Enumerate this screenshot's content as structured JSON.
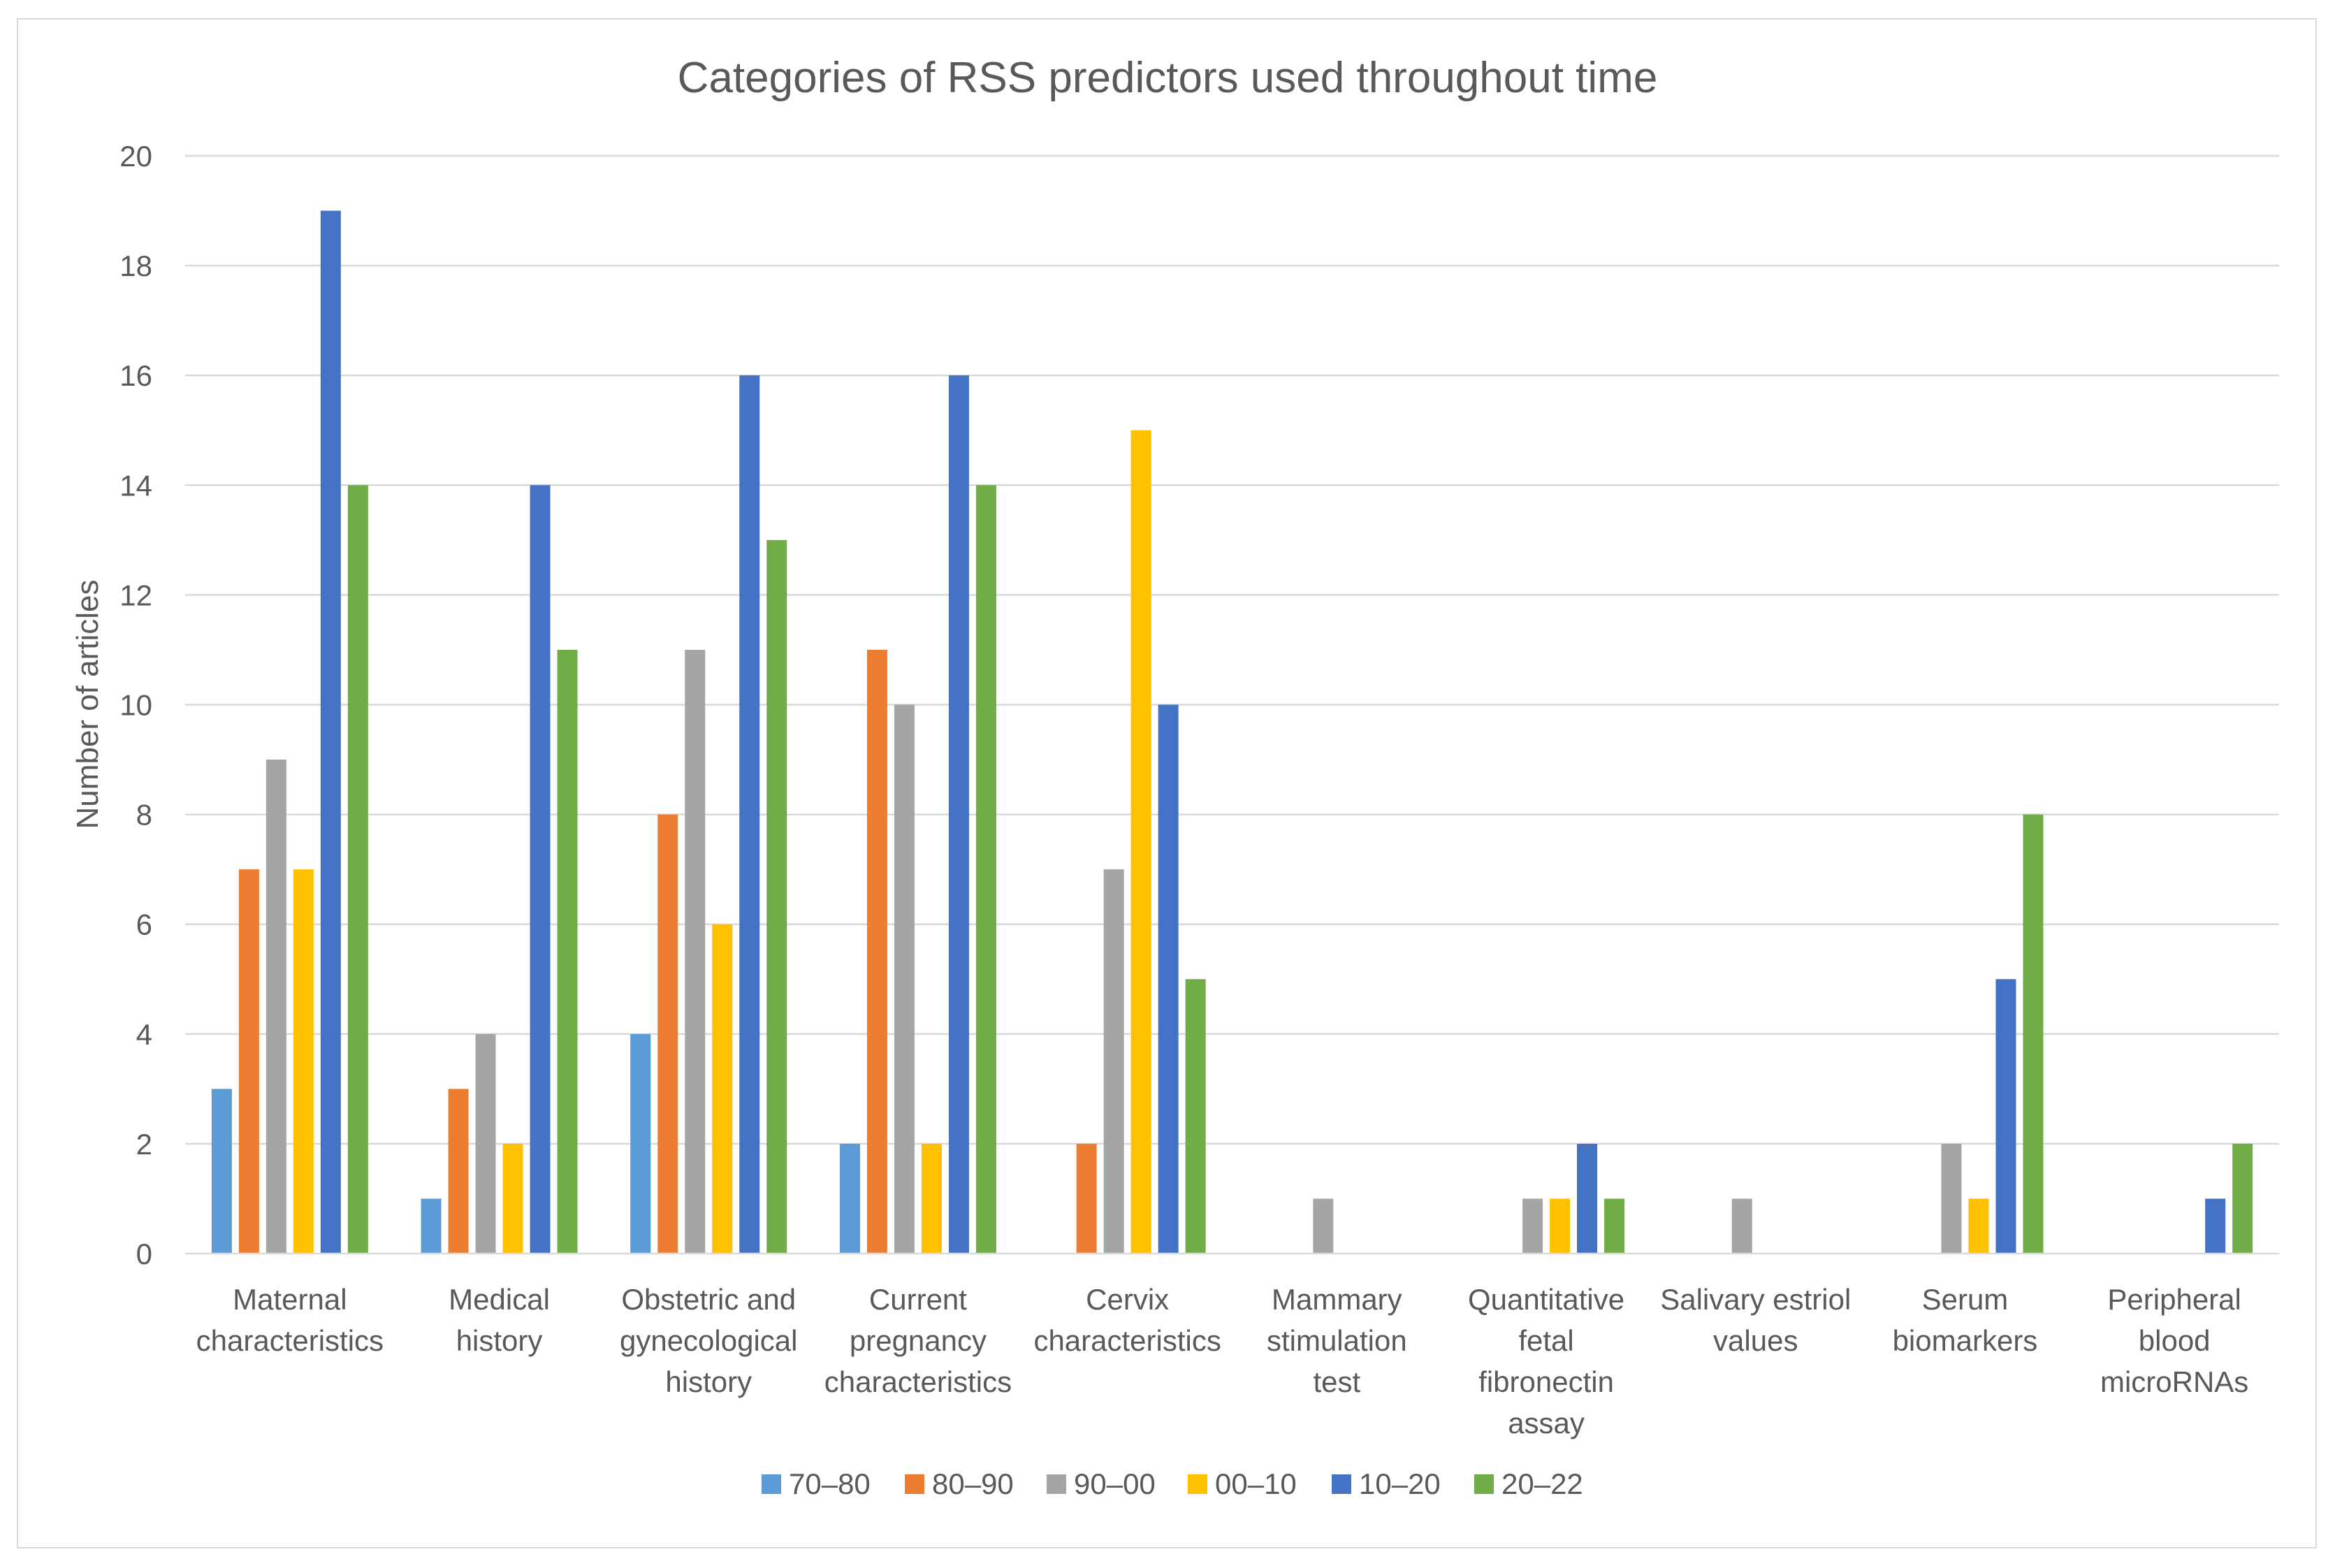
{
  "chart_data": {
    "type": "bar",
    "title": "Categories of RSS predictors used throughout time",
    "xlabel": "",
    "ylabel": "Number of articles",
    "ylim": [
      0,
      20
    ],
    "yticks": [
      0,
      2,
      4,
      6,
      8,
      10,
      12,
      14,
      16,
      18,
      20
    ],
    "grid": true,
    "legend_position": "bottom",
    "categories": [
      [
        "Maternal",
        "characteristics"
      ],
      [
        "Medical",
        "history"
      ],
      [
        "Obstetric and",
        "gynecological",
        "history"
      ],
      [
        "Current",
        "pregnancy",
        "characteristics"
      ],
      [
        "Cervix",
        "characteristics"
      ],
      [
        "Mammary",
        "stimulation",
        "test"
      ],
      [
        "Quantitative",
        "fetal",
        "fibronectin",
        "assay"
      ],
      [
        "Salivary estriol",
        "values"
      ],
      [
        "Serum",
        "biomarkers"
      ],
      [
        "Peripheral",
        "blood",
        "microRNAs"
      ]
    ],
    "series": [
      {
        "name": "70–80",
        "color": "#5b9bd5",
        "values": [
          3,
          1,
          4,
          2,
          null,
          null,
          null,
          null,
          null,
          null
        ]
      },
      {
        "name": "80–90",
        "color": "#ed7d31",
        "values": [
          7,
          3,
          8,
          11,
          2,
          null,
          null,
          null,
          null,
          null
        ]
      },
      {
        "name": "90–00",
        "color": "#a5a5a5",
        "values": [
          9,
          4,
          11,
          10,
          7,
          1,
          1,
          1,
          2,
          null
        ]
      },
      {
        "name": "00–10",
        "color": "#ffc000",
        "values": [
          7,
          2,
          6,
          2,
          15,
          null,
          1,
          null,
          1,
          null
        ]
      },
      {
        "name": "10–20",
        "color": "#4472c4",
        "values": [
          19,
          14,
          16,
          16,
          10,
          null,
          2,
          null,
          5,
          1
        ]
      },
      {
        "name": "20–22",
        "color": "#70ad47",
        "values": [
          14,
          11,
          13,
          14,
          5,
          null,
          1,
          null,
          8,
          2
        ]
      }
    ]
  }
}
